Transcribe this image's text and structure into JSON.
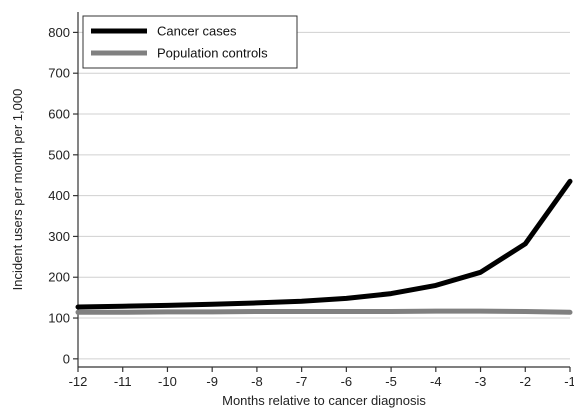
{
  "chart_data": {
    "type": "line",
    "xlabel": "Months relative to cancer diagnosis",
    "ylabel": "Incident users per month per 1,000",
    "x": [
      -12,
      -11,
      -10,
      -9,
      -8,
      -7,
      -6,
      -5,
      -4,
      -3,
      -2,
      -1
    ],
    "x_ticks": [
      "-12",
      "-11",
      "-10",
      "-9",
      "-8",
      "-7",
      "-6",
      "-5",
      "-4",
      "-3",
      "-2",
      "-1"
    ],
    "y_ticks": [
      "0",
      "100",
      "200",
      "300",
      "400",
      "500",
      "600",
      "700",
      "800"
    ],
    "xlim": [
      -12,
      -1
    ],
    "ylim": [
      -20,
      850
    ],
    "grid": true,
    "legend_position": "top-left",
    "series": [
      {
        "name": "Cancer cases",
        "color": "#000000",
        "values": [
          127,
          129,
          131,
          134,
          137,
          141,
          148,
          160,
          180,
          212,
          282,
          435
        ]
      },
      {
        "name": "Population controls",
        "color": "#808080",
        "values": [
          114,
          114,
          115,
          115,
          116,
          116,
          116,
          116,
          117,
          117,
          116,
          114
        ]
      }
    ]
  }
}
